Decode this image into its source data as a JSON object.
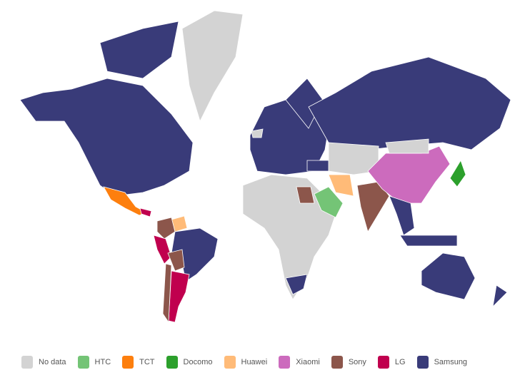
{
  "legend": [
    {
      "key": "nodata",
      "label": "No data",
      "color": "#d3d3d3"
    },
    {
      "key": "htc",
      "label": "HTC",
      "color": "#74c476"
    },
    {
      "key": "tct",
      "label": "TCT",
      "color": "#fd7f0e"
    },
    {
      "key": "docomo",
      "label": "Docomo",
      "color": "#2ca02c"
    },
    {
      "key": "huawei",
      "label": "Huawei",
      "color": "#ffbb78"
    },
    {
      "key": "xiaomi",
      "label": "Xiaomi",
      "color": "#cc6bbd"
    },
    {
      "key": "sony",
      "label": "Sony",
      "color": "#8c564b"
    },
    {
      "key": "lg",
      "label": "LG",
      "color": "#c0004e"
    },
    {
      "key": "samsung",
      "label": "Samsung",
      "color": "#393b79"
    }
  ],
  "regions": {
    "north-america": "samsung",
    "arctic-islands": "samsung",
    "greenland": "nodata",
    "mexico": "tct",
    "central-america": "lg",
    "venezuela": "huawei",
    "colombia": "sony",
    "brazil": "samsung",
    "peru": "lg",
    "bolivia": "sony",
    "argentina": "lg",
    "chile": "sony",
    "europe": "samsung",
    "scandinavia": "samsung",
    "iceland": "nodata",
    "russia": "samsung",
    "africa": "nodata",
    "egypt": "sony",
    "south-africa": "samsung",
    "saudi-arabia": "htc",
    "iran": "huawei",
    "turkey": "samsung",
    "central-asia": "nodata",
    "india": "sony",
    "china": "xiaomi",
    "mongolia": "nodata",
    "southeast-asia": "samsung",
    "indonesia": "samsung",
    "japan": "docomo",
    "australia": "samsung",
    "new-zealand": "samsung"
  }
}
